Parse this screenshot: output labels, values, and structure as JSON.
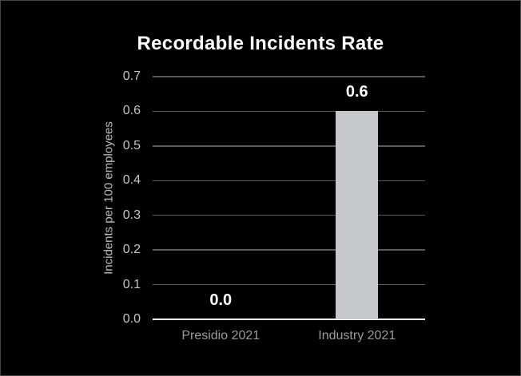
{
  "chart_data": {
    "type": "bar",
    "title": "Recordable Incidents Rate",
    "ylabel": "Incidents per 100 employees",
    "xlabel": "",
    "categories": [
      "Presidio 2021",
      "Industry 2021"
    ],
    "values": [
      0.0,
      0.6
    ],
    "value_labels": [
      "0.0",
      "0.6"
    ],
    "yticks": [
      0.0,
      0.1,
      0.2,
      0.3,
      0.4,
      0.5,
      0.6,
      0.7
    ],
    "ytick_labels": [
      "0.0",
      "0.1",
      "0.2",
      "0.3",
      "0.4",
      "0.5",
      "0.6",
      "0.7"
    ],
    "ylim": [
      0,
      0.7
    ],
    "grid": true,
    "legend": false,
    "colors": {
      "background": "#000000",
      "frame_border": "#464646",
      "bar": "#c7c8ca",
      "gridline": "#5a5a5a",
      "axis_line": "#ffffff",
      "tick_label": "#c4c4c4",
      "category_label": "#9b9b9b",
      "value_label": "#ffffff",
      "title": "#ffffff",
      "ylabel_color": "#bdbdbd"
    }
  }
}
